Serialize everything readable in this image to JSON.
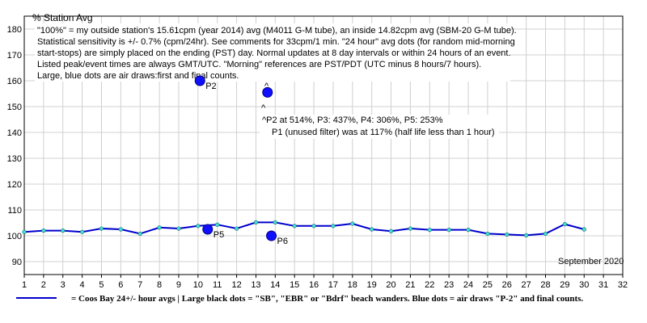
{
  "chart_data": {
    "type": "line",
    "title": "% Station Avg",
    "month_label": "September 2020",
    "xlim": [
      1,
      32
    ],
    "ylim": [
      85,
      185
    ],
    "x_ticks": [
      1,
      2,
      3,
      4,
      5,
      6,
      7,
      8,
      9,
      10,
      11,
      12,
      13,
      14,
      15,
      16,
      17,
      18,
      19,
      20,
      21,
      22,
      23,
      24,
      25,
      26,
      27,
      28,
      29,
      30,
      31,
      32
    ],
    "y_ticks": [
      90,
      100,
      110,
      120,
      130,
      140,
      150,
      160,
      170,
      180
    ],
    "grid": true,
    "series": [
      {
        "color": "#0000cc",
        "x": [
          1,
          2,
          3,
          4,
          5,
          6,
          7,
          8,
          9,
          10,
          11,
          12,
          13,
          14,
          15,
          16,
          17,
          18,
          19,
          20,
          21,
          22,
          23,
          24,
          25,
          26,
          27,
          28,
          29,
          30
        ],
        "values": [
          101.5,
          102,
          102,
          101.5,
          102.8,
          102.5,
          100.8,
          103.2,
          102.8,
          103.8,
          104.3,
          102.8,
          105.2,
          105.2,
          103.8,
          103.8,
          103.8,
          104.7,
          102.5,
          101.8,
          102.8,
          102.3,
          102.3,
          102.3,
          100.8,
          100.5,
          100.2,
          100.8,
          104.5,
          102.5
        ]
      }
    ],
    "air_draws": [
      {
        "label": "P2",
        "x": 10.1,
        "y": 160
      },
      {
        "label": "P5",
        "x": 10.5,
        "y": 102.5
      },
      {
        "label": "P6",
        "x": 13.8,
        "y": 100
      },
      {
        "label": "",
        "x": 13.6,
        "y": 155.5
      }
    ],
    "caret_above": "^",
    "caret_below": "^",
    "notes": [
      "\"100%\" = my outside station's 15.61cpm (year 2014) avg (M4011 G-M tube), an inside 14.82cpm avg (SBM-20 G-M tube).",
      "Statistical sensitivity is +/- 0.7% (cpm/24hr). See comments for 33cpm/1 min. \"24 hour\" avg dots (for random mid-morning",
      "start-stops) are simply placed on the ending (PST) day. Normal updates at 8 day intervals or within 24 hours of an event.",
      "Listed peak/event times are always GMT/UTC.  \"Morning\" references are PST/PDT (UTC minus 8 hours/7 hours).",
      "Large, blue dots are air draws:first and final counts."
    ],
    "annotation_lines": [
      "^P2 at 514%, P3: 437%, P4: 306%, P5: 253%",
      "P1 (unused filter) was at 117% (half life less than 1 hour)"
    ],
    "legend_text": "= Coos Bay 24+/- hour avgs | Large black dots = \"SB\", \"EBR\" or \"Bdrf\" beach wanders. Blue dots = air draws \"P-2\" and final counts."
  }
}
